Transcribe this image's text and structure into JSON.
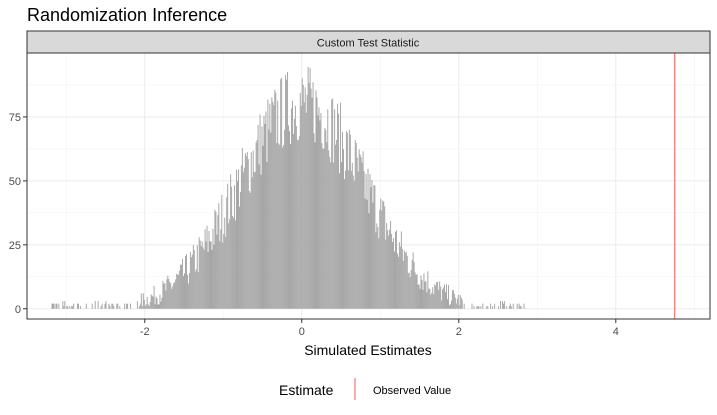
{
  "chart_data": {
    "type": "bar",
    "title": "Randomization Inference",
    "facet_label": "Custom Test Statistic",
    "xlabel": "Simulated Estimates",
    "ylabel": "",
    "xlim": [
      -3.5,
      5.2
    ],
    "ylim": [
      -4,
      100
    ],
    "x_ticks": [
      -2,
      0,
      2,
      4
    ],
    "y_ticks": [
      0,
      25,
      50,
      75
    ],
    "grid": true,
    "bin_width": 0.0125,
    "distribution": {
      "shape": "approximately normal",
      "center": 0.0,
      "spread_sd": 0.8,
      "range": [
        -3.2,
        2.85
      ],
      "peak_count": 98
    },
    "observed_value": 4.75,
    "observed_color": "#f8766d",
    "bar_color": "#a6a6a6",
    "legend": {
      "title": "Estimate",
      "position": "bottom",
      "entries": [
        {
          "label": "Observed Value",
          "color": "#f8766d"
        }
      ]
    }
  }
}
